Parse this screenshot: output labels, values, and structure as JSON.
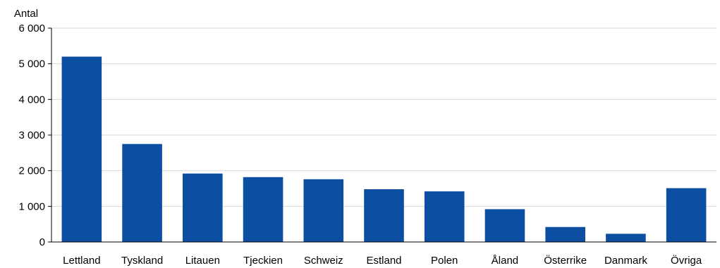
{
  "chart_data": {
    "type": "bar",
    "ylabel": "Antal",
    "ylim": [
      0,
      6000
    ],
    "yticks": [
      0,
      1000,
      2000,
      3000,
      4000,
      5000,
      6000
    ],
    "ytick_labels": [
      "0",
      "1 000",
      "2 000",
      "3 000",
      "4 000",
      "5 000",
      "6 000"
    ],
    "grid": true,
    "categories": [
      "Lettland",
      "Tyskland",
      "Litauen",
      "Tjeckien",
      "Schweiz",
      "Estland",
      "Polen",
      "Åland",
      "Österrike",
      "Danmark",
      "Övriga"
    ],
    "values": [
      5200,
      2750,
      1920,
      1820,
      1760,
      1480,
      1420,
      920,
      420,
      230,
      1510
    ],
    "bar_color": "#0b4ea2"
  }
}
